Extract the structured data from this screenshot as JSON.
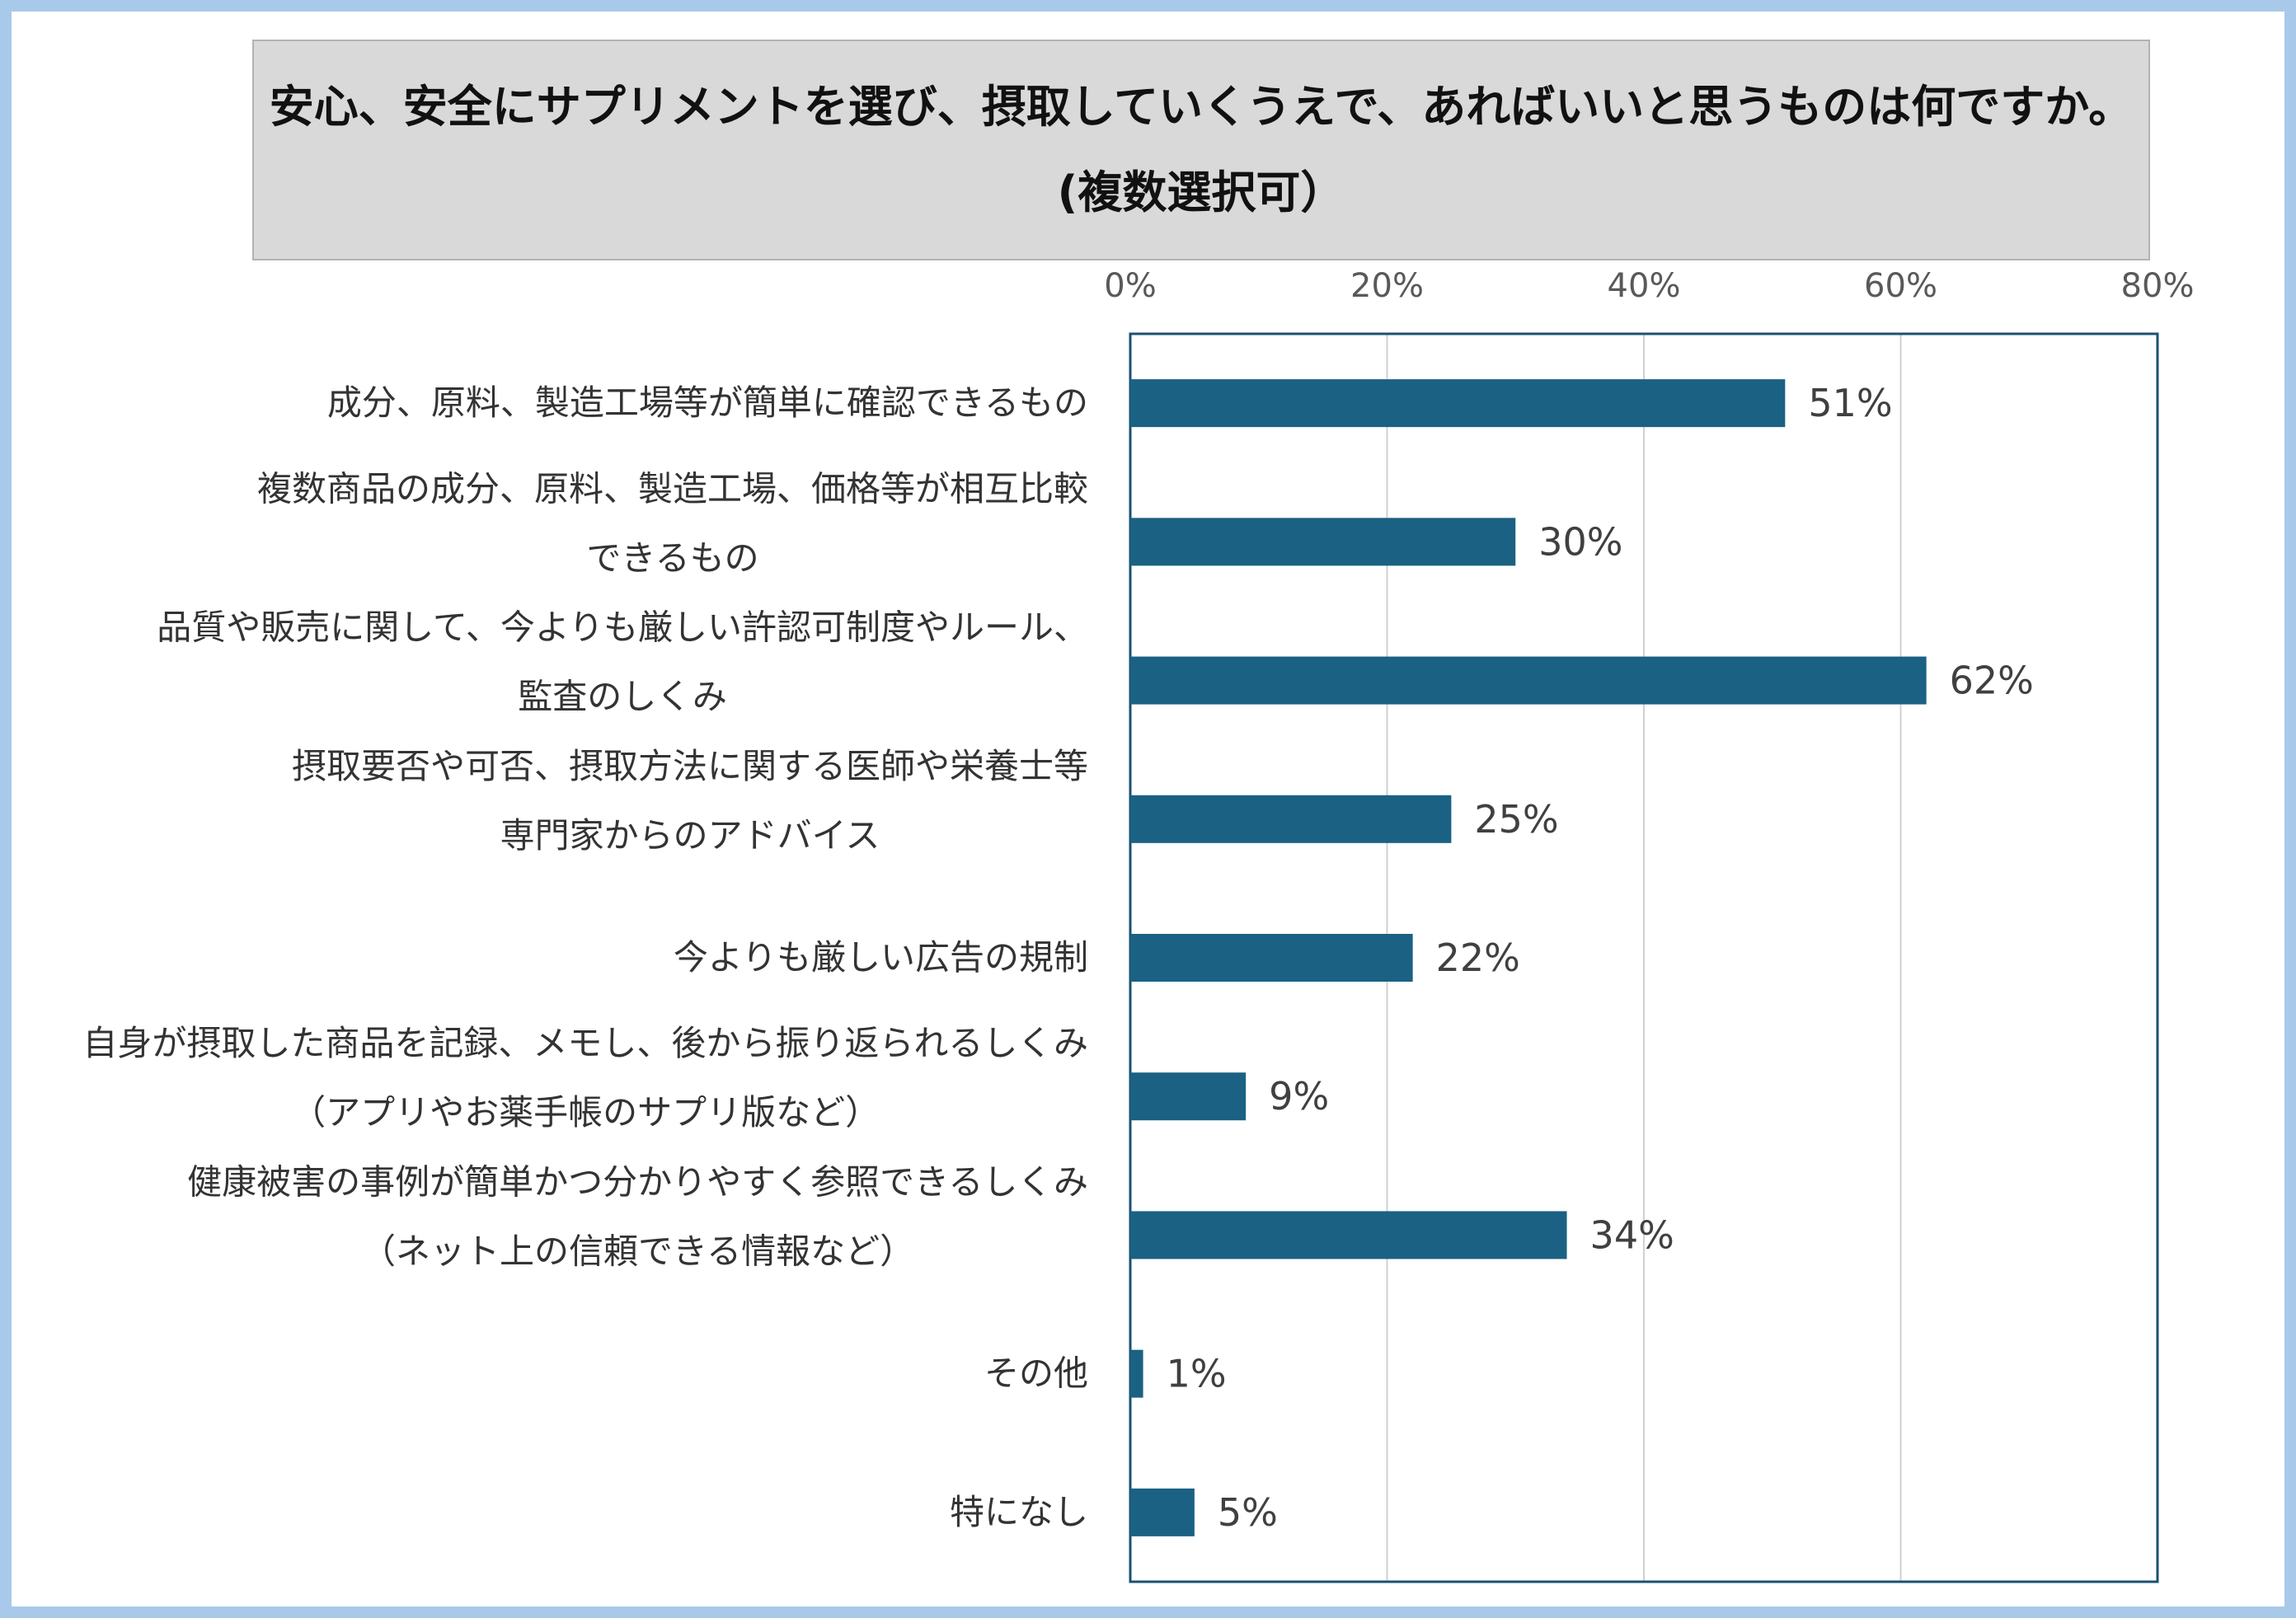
{
  "title": {
    "line1": "安心、安全にサプリメントを選び、摂取していくうえで、あればいいと思うものは何ですか。",
    "line2": "(複数選択可）"
  },
  "colors": {
    "bar": "#1a6183",
    "plot_border": "#1a5173",
    "grid": "#d0d0d0",
    "background": "#a9c9ea"
  },
  "chart_data": {
    "type": "bar",
    "orientation": "horizontal",
    "xlim": [
      0,
      80
    ],
    "ticks": [
      0,
      20,
      40,
      60,
      80
    ],
    "tick_labels": [
      "0%",
      "20%",
      "40%",
      "60%",
      "80%"
    ],
    "grid": true,
    "categories": [
      [
        "成分、原料、製造工場等が簡単に確認できるもの"
      ],
      [
        "複数商品の成分、原料、製造工場、価格等が相互比較",
        "できるもの"
      ],
      [
        "品質や販売に関して、今よりも厳しい許認可制度やルール、",
        "監査のしくみ"
      ],
      [
        "摂取要否や可否、摂取方法に関する医師や栄養士等",
        "専門家からのアドバイス"
      ],
      [
        "今よりも厳しい広告の規制"
      ],
      [
        "自身が摂取した商品を記録、メモし、後から振り返られるしくみ",
        "（アプリやお薬手帳のサプリ版など）"
      ],
      [
        "健康被害の事例が簡単かつ分かりやすく参照できるしくみ",
        "（ネット上の信頼できる情報など）"
      ],
      [
        "その他"
      ],
      [
        "特になし"
      ]
    ],
    "values": [
      51,
      30,
      62,
      25,
      22,
      9,
      34,
      1,
      5
    ],
    "value_labels": [
      "51%",
      "30%",
      "62%",
      "25%",
      "22%",
      "9%",
      "34%",
      "1%",
      "5%"
    ]
  }
}
